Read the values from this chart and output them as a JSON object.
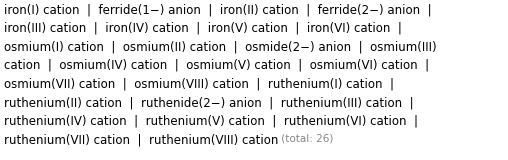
{
  "lines": [
    "iron(I) cation  |  ferride(1−) anion  |  iron(II) cation  |  ferride(2−) anion  |",
    "iron(III) cation  |  iron(IV) cation  |  iron(V) cation  |  iron(VI) cation  |",
    "osmium(I) cation  |  osmium(II) cation  |  osmide(2−) anion  |  osmium(III)",
    "cation  |  osmium(IV) cation  |  osmium(V) cation  |  osmium(VI) cation  |",
    "osmium(VII) cation  |  osmium(VIII) cation  |  ruthenium(I) cation  |",
    "ruthenium(II) cation  |  ruthenide(2−) anion  |  ruthenium(III) cation  |",
    "ruthenium(IV) cation  |  ruthenium(V) cation  |  ruthenium(VI) cation  |",
    "ruthenium(VII) cation  |  ruthenium(VIII) cation"
  ],
  "last_line_main": "ruthenium(VII) cation  |  ruthenium(VIII) cation",
  "total_text": " (total: 26)",
  "main_color": "#000000",
  "total_color": "#888888",
  "background_color": "#ffffff",
  "font_size": 8.5,
  "total_font_size": 7.5,
  "figwidth": 5.08,
  "figheight": 1.6,
  "dpi": 100
}
